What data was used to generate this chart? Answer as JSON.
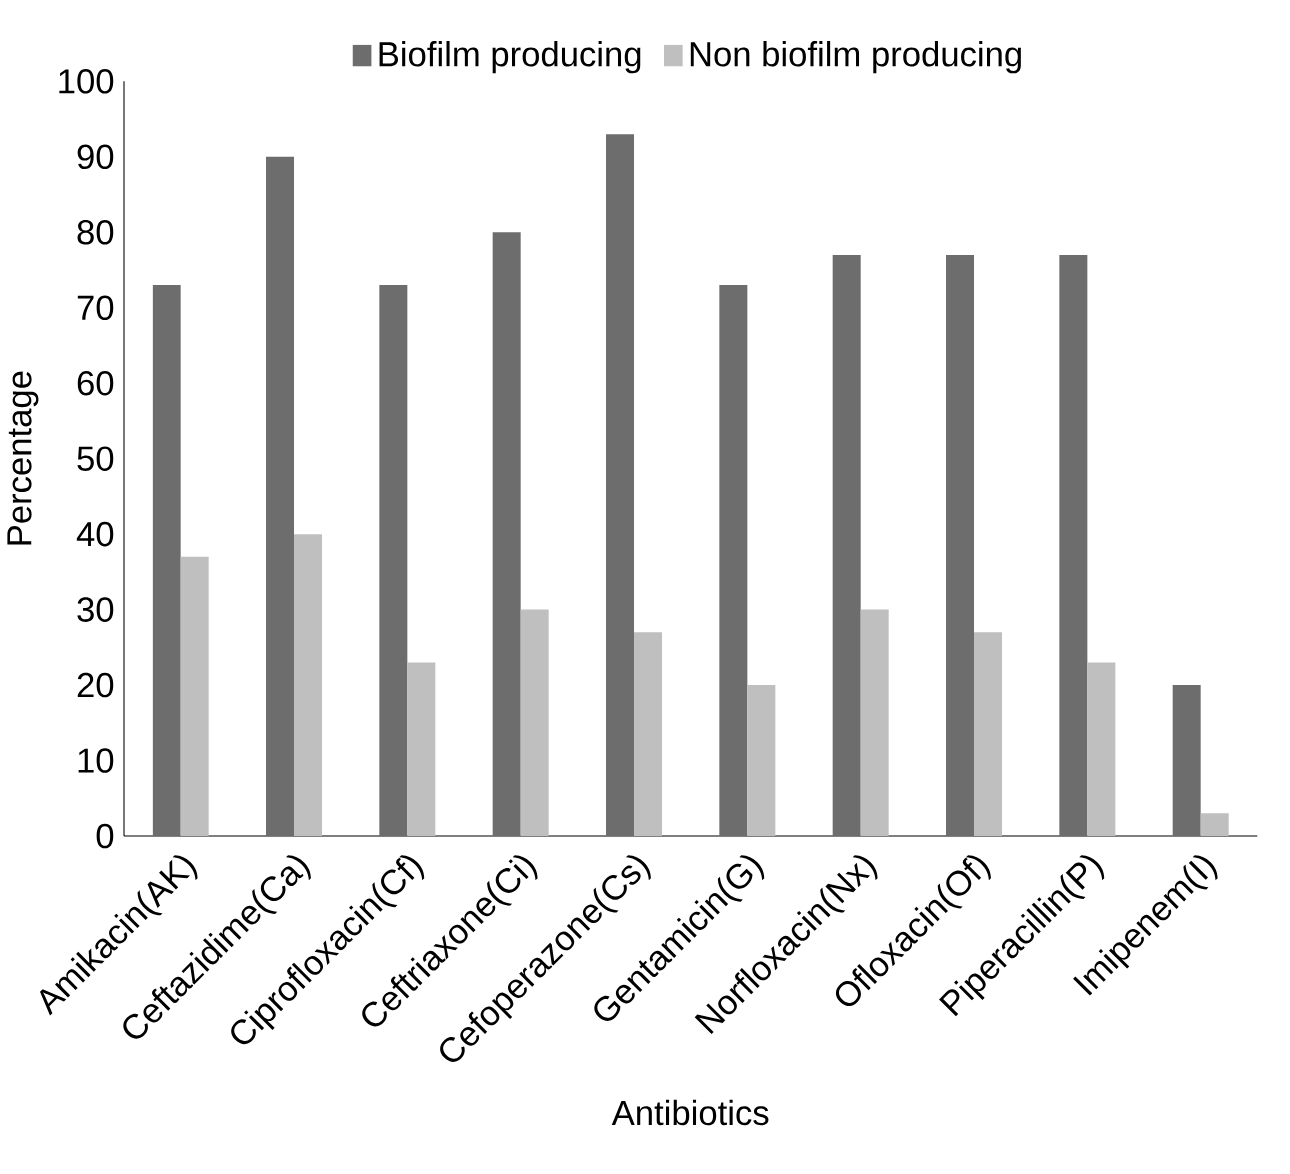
{
  "chart_data": {
    "type": "bar",
    "xlabel": "Antibiotics",
    "ylabel": "Percentage",
    "categories": [
      "Amikacin(AK)",
      "Ceftazidime(Ca)",
      "Ciprofloxacin(Cf)",
      "Ceftriaxone(Ci)",
      "Cefoperazone(Cs)",
      "Gentamicin(G)",
      "Norfloxacin(Nx)",
      "Ofloxacin(Of)",
      "Piperacillin(P)",
      "Imipenem(I)"
    ],
    "series": [
      {
        "name": "Biofilm producing",
        "color": "#6d6d6d",
        "values": [
          73,
          90,
          73,
          80,
          93,
          73,
          77,
          77,
          77,
          20
        ]
      },
      {
        "name": "Non biofilm producing",
        "color": "#bfbfbf",
        "values": [
          37,
          40,
          23,
          30,
          27,
          20,
          30,
          27,
          23,
          3
        ]
      }
    ],
    "ylim": [
      0,
      100
    ],
    "yticks": [
      0,
      10,
      20,
      30,
      40,
      50,
      60,
      70,
      80,
      90,
      100
    ],
    "grid": false,
    "legend": "top"
  }
}
